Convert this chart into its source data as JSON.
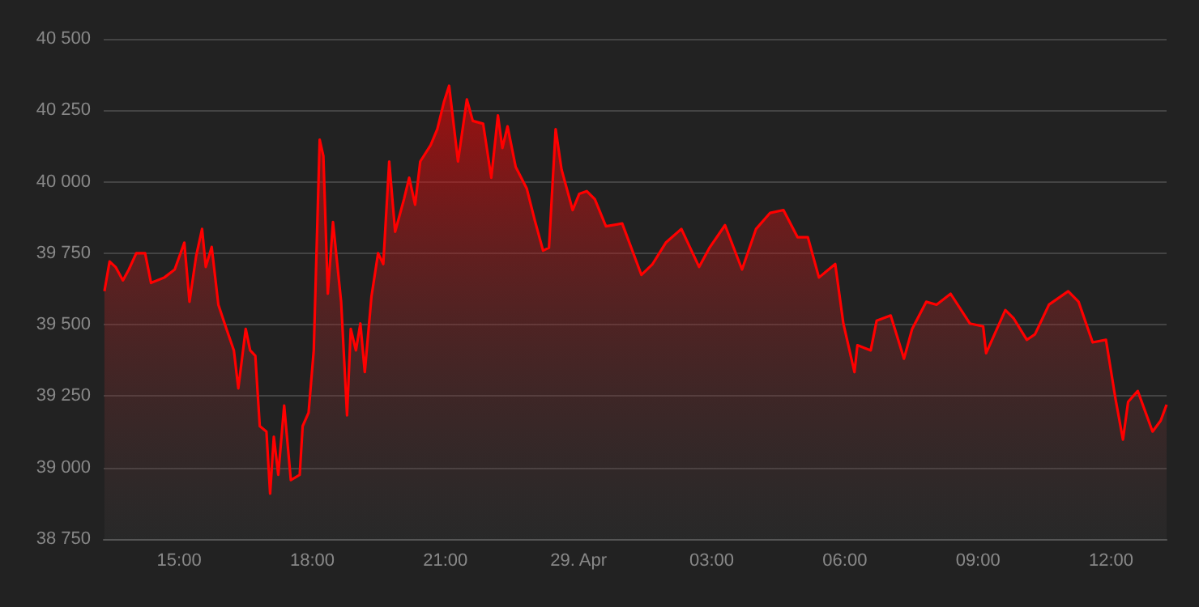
{
  "chart_data": {
    "type": "area",
    "x": [
      "--04-28T13:19",
      "--04-28T13:26",
      "--04-28T13:34",
      "--04-28T13:44",
      "--04-28T13:52",
      "--04-28T14:02",
      "--04-28T14:14",
      "--04-28T14:22",
      "--04-28T14:40",
      "--04-28T14:54",
      "--04-28T15:07",
      "--04-28T15:14",
      "--04-28T15:23",
      "--04-28T15:31",
      "--04-28T15:36",
      "--04-28T15:44",
      "--04-28T15:53",
      "--04-28T16:04",
      "--04-28T16:14",
      "--04-28T16:20",
      "--04-28T16:30",
      "--04-28T16:36",
      "--04-28T16:43",
      "--04-28T16:49",
      "--04-28T16:58",
      "--04-28T17:03",
      "--04-28T17:08",
      "--04-28T17:14",
      "--04-28T17:22",
      "--04-28T17:31",
      "--04-28T17:43",
      "--04-28T17:47",
      "--04-28T17:55",
      "--04-28T18:02",
      "--04-28T18:10",
      "--04-28T18:15",
      "--04-28T18:21",
      "--04-28T18:28",
      "--04-28T18:39",
      "--04-28T18:47",
      "--04-28T18:52",
      "--04-28T18:59",
      "--04-28T19:05",
      "--04-28T19:11",
      "--04-28T19:20",
      "--04-28T19:29",
      "--04-28T19:36",
      "--04-28T19:44",
      "--04-28T19:52",
      "--04-28T20:04",
      "--04-28T20:11",
      "--04-28T20:19",
      "--04-28T20:26",
      "--04-28T20:40",
      "--04-28T20:49",
      "--04-28T20:58",
      "--04-28T21:05",
      "--04-28T21:17",
      "--04-28T21:29",
      "--04-28T21:37",
      "--04-28T21:51",
      "--04-28T22:02",
      "--04-28T22:11",
      "--04-28T22:17",
      "--04-28T22:24",
      "--04-28T22:35",
      "--04-28T22:50",
      "--04-28T23:01",
      "--04-28T23:12",
      "--04-28T23:20",
      "--04-28T23:29",
      "--04-28T23:37",
      "--04-28T23:52",
      "--04-29T00:01",
      "--04-29T00:11",
      "--04-29T00:22",
      "--04-29T00:37",
      "--04-29T00:59",
      "--04-29T01:25",
      "--04-29T01:40",
      "--04-29T01:58",
      "--04-29T02:19",
      "--04-29T02:43",
      "--04-29T02:57",
      "--04-29T03:18",
      "--04-29T03:41",
      "--04-29T04:00",
      "--04-29T04:19",
      "--04-29T04:37",
      "--04-29T04:56",
      "--04-29T05:10",
      "--04-29T05:25",
      "--04-29T05:47",
      "--04-29T05:58",
      "--04-29T06:13",
      "--04-29T06:17",
      "--04-29T06:35",
      "--04-29T06:43",
      "--04-29T07:02",
      "--04-29T07:20",
      "--04-29T07:31",
      "--04-29T07:50",
      "--04-29T08:04",
      "--04-29T08:23",
      "--04-29T08:49",
      "--04-29T09:07",
      "--04-29T09:11",
      "--04-29T09:37",
      "--04-29T09:48",
      "--04-29T10:06",
      "--04-29T10:17",
      "--04-29T10:36",
      "--04-29T11:02",
      "--04-29T11:16",
      "--04-29T11:35",
      "--04-29T11:53",
      "--04-29T12:06",
      "--04-29T12:16",
      "--04-29T12:23",
      "--04-29T12:36",
      "--04-29T12:56",
      "--04-29T13:07",
      "--04-29T13:15"
    ],
    "series": [
      {
        "color": "#ff0000",
        "values": [
          39617,
          39721,
          39702,
          39655,
          39693,
          39750,
          39750,
          39646,
          39665,
          39693,
          39787,
          39580,
          39740,
          39835,
          39702,
          39772,
          39570,
          39485,
          39410,
          39277,
          39485,
          39410,
          39391,
          39145,
          39126,
          38909,
          39108,
          38975,
          39217,
          38956,
          38975,
          39145,
          39192,
          39410,
          40147,
          40090,
          39608,
          39859,
          39580,
          39183,
          39485,
          39410,
          39504,
          39334,
          39598,
          39750,
          39712,
          40071,
          39825,
          39939,
          40014,
          39920,
          40071,
          40128,
          40184,
          40279,
          40336,
          40071,
          40288,
          40213,
          40203,
          40014,
          40232,
          40118,
          40194,
          40052,
          39976,
          39863,
          39759,
          39769,
          40184,
          40043,
          39901,
          39958,
          39967,
          39939,
          39844,
          39854,
          39674,
          39712,
          39787,
          39835,
          39702,
          39769,
          39848,
          39693,
          39835,
          39891,
          39901,
          39806,
          39806,
          39665,
          39712,
          39504,
          39334,
          39428,
          39410,
          39514,
          39532,
          39381,
          39485,
          39580,
          39570,
          39608,
          39504,
          39494,
          39400,
          39551,
          39523,
          39447,
          39466,
          39570,
          39617,
          39580,
          39438,
          39447,
          39239,
          39098,
          39230,
          39268,
          39126,
          39164,
          39220
        ]
      }
    ],
    "xlim": [
      "--04-28T13:18",
      "--04-29T13:15"
    ],
    "xticks": [
      {
        "value": "--04-28T15:00",
        "label": "15:00"
      },
      {
        "value": "--04-28T18:00",
        "label": "18:00"
      },
      {
        "value": "--04-28T21:00",
        "label": "21:00"
      },
      {
        "value": "--04-29T00:00",
        "label": "29. Apr"
      },
      {
        "value": "--04-29T03:00",
        "label": "03:00"
      },
      {
        "value": "--04-29T06:00",
        "label": "06:00"
      },
      {
        "value": "--04-29T09:00",
        "label": "09:00"
      },
      {
        "value": "--04-29T12:00",
        "label": "12:00"
      }
    ],
    "ylim": [
      38750,
      40500
    ],
    "yticks": [
      {
        "value": 38750,
        "label": "38 750"
      },
      {
        "value": 39000,
        "label": "39 000"
      },
      {
        "value": 39250,
        "label": "39 250"
      },
      {
        "value": 39500,
        "label": "39 500"
      },
      {
        "value": 39750,
        "label": "39 750"
      },
      {
        "value": 40000,
        "label": "40 000"
      },
      {
        "value": 40250,
        "label": "40 250"
      },
      {
        "value": 40500,
        "label": "40 500"
      }
    ],
    "grid": "y",
    "marker": "none",
    "line_style": "solid"
  }
}
